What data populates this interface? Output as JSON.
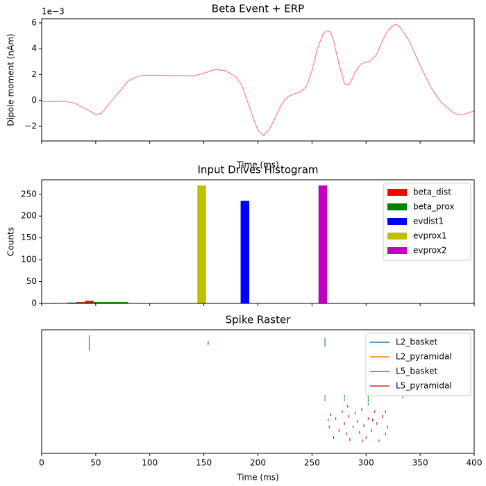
{
  "chart_data": [
    {
      "type": "line",
      "title": "Beta Event + ERP",
      "xlabel": "Time (ms)",
      "ylabel": "Dipole moment (nAm)",
      "offset_text": "1e−3",
      "color": "#ff8080",
      "x": [
        0,
        20,
        30,
        40,
        50,
        55,
        60,
        70,
        80,
        90,
        100,
        120,
        140,
        150,
        160,
        170,
        180,
        185,
        190,
        195,
        200,
        205,
        210,
        215,
        220,
        225,
        230,
        240,
        245,
        250,
        255,
        260,
        263,
        267,
        270,
        275,
        280,
        283,
        285,
        290,
        295,
        300,
        303,
        307,
        310,
        315,
        320,
        325,
        328,
        332,
        340,
        350,
        360,
        370,
        380,
        385,
        390,
        400
      ],
      "values": [
        -0.1,
        -0.05,
        -0.2,
        -0.6,
        -1.1,
        -1.0,
        -0.5,
        0.5,
        1.5,
        1.9,
        1.95,
        1.93,
        1.9,
        2.1,
        2.4,
        2.3,
        1.8,
        1.2,
        0,
        -1.2,
        -2.3,
        -2.7,
        -2.3,
        -1.5,
        -0.6,
        0.1,
        0.4,
        0.7,
        1.1,
        2.3,
        4.0,
        5.1,
        5.4,
        5.3,
        4.6,
        2.8,
        1.3,
        1.2,
        1.3,
        2.2,
        2.8,
        3.0,
        3.0,
        3.3,
        3.6,
        4.6,
        5.4,
        5.8,
        5.9,
        5.6,
        4.6,
        2.7,
        1.0,
        -0.2,
        -0.9,
        -1.1,
        -1.1,
        -0.8
      ],
      "xlim": [
        0,
        400
      ],
      "xticks": [
        0,
        50,
        100,
        150,
        200,
        250,
        300,
        350,
        400
      ],
      "xtick_labels": false,
      "ylim": [
        -3.13,
        6.32
      ],
      "yticks": [
        {
          "value": -2,
          "label": "−2"
        },
        0,
        2,
        4,
        6
      ]
    },
    {
      "type": "histogram",
      "title": "Input Drives Histogram",
      "ylabel": "Counts",
      "legend": "upper right",
      "bins": [
        0,
        8,
        16,
        24,
        32,
        40,
        48,
        56,
        64,
        72,
        80,
        88,
        96,
        104,
        112,
        120,
        128,
        136,
        144,
        152,
        160,
        168,
        176,
        184,
        192,
        200,
        208,
        216,
        224,
        232,
        240,
        248,
        256,
        264,
        272,
        280,
        288,
        296,
        304,
        312,
        320,
        328,
        336,
        344,
        352,
        360,
        368,
        376,
        384,
        392,
        400
      ],
      "series": [
        {
          "name": "beta_dist",
          "color": "#ff0000",
          "values": [
            0,
            0,
            0,
            0,
            3,
            6,
            0,
            0,
            0,
            0,
            0,
            0,
            0,
            0,
            0,
            0,
            0,
            0,
            0,
            0,
            0,
            0,
            0,
            0,
            0,
            0,
            0,
            0,
            0,
            0,
            0,
            0,
            0,
            0,
            0,
            0,
            0,
            0,
            0,
            0,
            0,
            0,
            0,
            0,
            0,
            0,
            0,
            0,
            0,
            0
          ]
        },
        {
          "name": "beta_prox",
          "color": "#008000",
          "values": [
            0,
            1,
            0,
            2,
            2,
            2,
            3,
            3,
            3,
            3,
            0,
            0,
            0,
            0,
            0,
            0,
            0,
            0,
            0,
            0,
            0,
            0,
            0,
            0,
            0,
            0,
            0,
            0,
            0,
            0,
            0,
            0,
            0,
            0,
            0,
            0,
            0,
            0,
            0,
            0,
            0,
            0,
            0,
            0,
            0,
            0,
            0,
            0,
            0,
            0
          ]
        },
        {
          "name": "evdist1",
          "color": "#0000ff",
          "values": [
            0,
            0,
            0,
            0,
            0,
            0,
            0,
            0,
            0,
            0,
            0,
            0,
            0,
            0,
            0,
            0,
            0,
            0,
            0,
            0,
            0,
            0,
            0,
            235,
            0,
            0,
            0,
            0,
            0,
            0,
            0,
            0,
            0,
            0,
            0,
            0,
            0,
            0,
            0,
            0,
            0,
            0,
            0,
            0,
            0,
            0,
            0,
            0,
            0,
            0
          ]
        },
        {
          "name": "evprox1",
          "color": "#bfbf00",
          "values": [
            0,
            0,
            0,
            0,
            0,
            0,
            0,
            0,
            0,
            0,
            0,
            0,
            0,
            0,
            0,
            0,
            0,
            0,
            270,
            0,
            0,
            0,
            0,
            0,
            0,
            0,
            0,
            0,
            0,
            0,
            0,
            0,
            0,
            0,
            0,
            0,
            0,
            0,
            0,
            0,
            0,
            0,
            0,
            0,
            0,
            0,
            0,
            0,
            0,
            0
          ]
        },
        {
          "name": "evprox2",
          "color": "#bf00bf",
          "values": [
            0,
            0,
            0,
            0,
            0,
            0,
            0,
            0,
            0,
            0,
            0,
            0,
            0,
            0,
            0,
            0,
            0,
            0,
            0,
            0,
            0,
            0,
            0,
            0,
            0,
            0,
            0,
            0,
            0,
            0,
            0,
            0,
            270,
            0,
            0,
            0,
            0,
            0,
            0,
            0,
            0,
            0,
            0,
            0,
            0,
            0,
            0,
            0,
            0,
            0
          ]
        }
      ],
      "xlim": [
        0,
        400
      ],
      "xticks": [
        0,
        50,
        100,
        150,
        200,
        250,
        300,
        350,
        400
      ],
      "xtick_labels": false,
      "ylim": [
        0,
        283
      ],
      "yticks": [
        0,
        50,
        100,
        150,
        200,
        250
      ]
    },
    {
      "type": "raster",
      "title": "Spike Raster",
      "xlabel": "Time (ms)",
      "legend": "upper right",
      "series": [
        {
          "name": "L2_basket",
          "color": "#1f77b4",
          "x": [
            44,
            44,
            44,
            44,
            44,
            44,
            44,
            154,
            154,
            262,
            262,
            262
          ],
          "y": [
            10,
            13,
            16,
            19,
            22,
            25,
            28,
            18,
            20,
            14,
            18,
            22
          ]
        },
        {
          "name": "L2_pyramidal",
          "color": "#ff7f0e",
          "x": [],
          "y": []
        },
        {
          "name": "L5_basket",
          "color": "#2ca02c",
          "x": [
            262,
            262,
            280,
            280,
            302,
            302,
            302,
            302,
            334
          ],
          "y": [
            96,
            101,
            96,
            101,
            92,
            97,
            102,
            107,
            97
          ]
        },
        {
          "name": "L5_pyramidal",
          "color": "#d62728",
          "x": [
            265,
            266,
            267,
            272,
            275,
            278,
            280,
            282,
            284,
            285,
            288,
            290,
            292,
            294,
            296,
            298,
            300,
            302,
            305,
            308,
            310,
            312,
            315,
            318,
            320,
            270,
            283,
            297,
            306,
            318
          ],
          "y": [
            130,
            140,
            122,
            128,
            145,
            118,
            135,
            150,
            125,
            158,
            140,
            120,
            132,
            148,
            115,
            138,
            155,
            128,
            145,
            118,
            135,
            160,
            125,
            150,
            140,
            155,
            110,
            160,
            130,
            118
          ]
        }
      ],
      "xlim": [
        0,
        400
      ],
      "xticks": [
        0,
        50,
        100,
        150,
        200,
        250,
        300,
        350,
        400
      ],
      "ylim": [
        178,
        0
      ]
    }
  ]
}
